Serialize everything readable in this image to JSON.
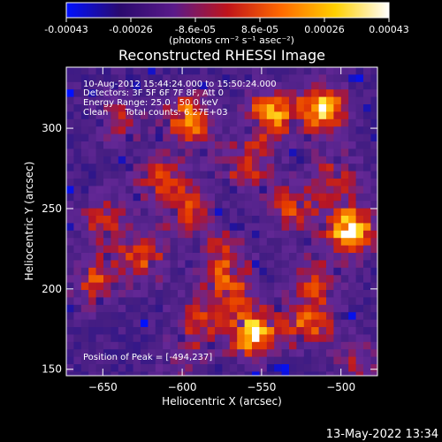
{
  "chart_data": {
    "type": "heatmap",
    "title": "Reconstructed RHESSI Image",
    "xlabel": "Heliocentric X (arcsec)",
    "ylabel": "Heliocentric Y (arcsec)",
    "xlim": [
      -673,
      -477
    ],
    "ylim": [
      146,
      338
    ],
    "xticks": [
      -650,
      -600,
      -550,
      -500
    ],
    "yticks": [
      150,
      200,
      250,
      300
    ],
    "colorbar": {
      "label": "(photons cm⁻² s⁻¹ asec⁻²)",
      "ticks": [
        "-0.00043",
        "-0.00026",
        "-8.6e-05",
        "8.6e-05",
        "0.00026",
        "0.00043"
      ],
      "colormap": [
        "#0010ff",
        "#2a0a6e",
        "#5a1a8a",
        "#c0141a",
        "#ff6a00",
        "#ffd000",
        "#ffffff"
      ]
    },
    "annotations": [
      "10-Aug-2012 15:44:24.000 to 15:50:24.000",
      "Detectors: 3F 5F 6F 7F 8F, Att 0",
      "Energy Range: 25.0 - 50.0 keV",
      "Clean      Total counts: 6.27E+03"
    ],
    "peak_label": "Position of Peak = [-494,237]",
    "peak_position": [
      -494,
      237
    ],
    "sources": [
      {
        "x": -494,
        "y": 237,
        "intensity": 1.0
      },
      {
        "x": -512,
        "y": 312,
        "intensity": 0.95
      },
      {
        "x": -545,
        "y": 308,
        "intensity": 0.8
      },
      {
        "x": -595,
        "y": 305,
        "intensity": 0.8
      },
      {
        "x": -560,
        "y": 278,
        "intensity": 0.6
      },
      {
        "x": -598,
        "y": 250,
        "intensity": 0.55
      },
      {
        "x": -575,
        "y": 222,
        "intensity": 0.5
      },
      {
        "x": -650,
        "y": 242,
        "intensity": 0.5
      },
      {
        "x": -625,
        "y": 220,
        "intensity": 0.6
      },
      {
        "x": -655,
        "y": 205,
        "intensity": 0.55
      },
      {
        "x": -515,
        "y": 205,
        "intensity": 0.5
      },
      {
        "x": -555,
        "y": 172,
        "intensity": 0.95
      },
      {
        "x": -520,
        "y": 178,
        "intensity": 0.65
      },
      {
        "x": -590,
        "y": 180,
        "intensity": 0.5
      },
      {
        "x": -640,
        "y": 305,
        "intensity": 0.4
      },
      {
        "x": -615,
        "y": 270,
        "intensity": 0.5
      },
      {
        "x": -530,
        "y": 250,
        "intensity": 0.55
      },
      {
        "x": -505,
        "y": 270,
        "intensity": 0.45
      },
      {
        "x": -570,
        "y": 200,
        "intensity": 0.55
      },
      {
        "x": -490,
        "y": 155,
        "intensity": 0.35
      },
      {
        "x": -600,
        "y": 155,
        "intensity": 0.3
      }
    ]
  },
  "footer": {
    "timestamp": "13-May-2022 13:34"
  }
}
